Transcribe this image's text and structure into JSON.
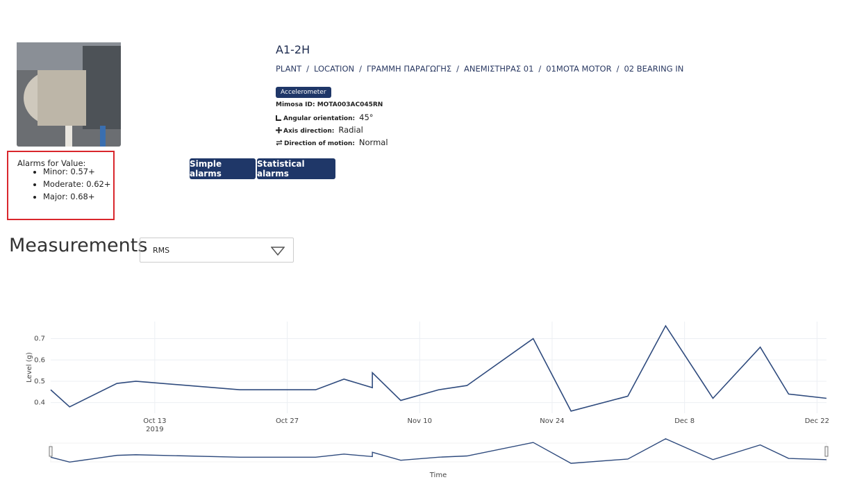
{
  "header": {
    "title": "A1-2H",
    "breadcrumb": [
      "PLANT",
      "LOCATION",
      "ΓΡΑΜΜΗ ΠΑΡΑΓΩΓΗΣ",
      "ΑΝΕΜΙΣΤΗΡΑΣ 01",
      "01MOTA MOTOR",
      "02 BEARING IN"
    ],
    "breadcrumb_separator": "/"
  },
  "sensor": {
    "type": "Accelerometer",
    "mimosa_id": "Mimosa ID: MOTA003AC045RN",
    "angular_orientation": {
      "label": "Angular orientation:",
      "value": "45°"
    },
    "axis_direction": {
      "label": "Axis direction:",
      "value": "Radial"
    },
    "direction_of_motion": {
      "label": "Direction of motion:",
      "value": "Normal"
    }
  },
  "alarms": {
    "heading": "Alarms for Value:",
    "items": [
      "Minor: 0.57+",
      "Moderate: 0.62+",
      "Major: 0.68+"
    ]
  },
  "buttons": [
    "Simple alarms",
    "Statistical alarms"
  ],
  "measurements": {
    "title": "Measurements",
    "selected": "RMS"
  },
  "chart_data": {
    "type": "line",
    "x_label": "Time",
    "y_label": "Level (g)",
    "x": [
      "2019-10-02",
      "2019-10-04",
      "2019-10-09",
      "2019-10-11",
      "2019-10-22",
      "2019-10-30",
      "2019-11-02",
      "2019-11-05",
      "2019-11-05",
      "2019-11-08",
      "2019-11-12",
      "2019-11-15",
      "2019-11-22",
      "2019-11-26",
      "2019-12-02",
      "2019-12-06",
      "2019-12-11",
      "2019-12-16",
      "2019-12-19",
      "2019-12-23"
    ],
    "series": [
      {
        "name": "RMS",
        "color": "#2e4a7d",
        "values": [
          0.46,
          0.38,
          0.49,
          0.5,
          0.46,
          0.46,
          0.51,
          0.47,
          0.54,
          0.41,
          0.46,
          0.48,
          0.7,
          0.36,
          0.43,
          0.76,
          0.42,
          0.66,
          0.44,
          0.42
        ]
      }
    ],
    "xlim": [
      "2019-10-02",
      "2019-12-23"
    ],
    "xticks": [
      {
        "value": "2019-10-13",
        "label": "Oct 13",
        "sublabel": "2019"
      },
      {
        "value": "2019-10-27",
        "label": "Oct 27"
      },
      {
        "value": "2019-11-10",
        "label": "Nov 10"
      },
      {
        "value": "2019-11-24",
        "label": "Nov 24"
      },
      {
        "value": "2019-12-08",
        "label": "Dec 8"
      },
      {
        "value": "2019-12-22",
        "label": "Dec 22"
      }
    ],
    "ylim": [
      0.35,
      0.78
    ],
    "yticks": [
      0.4,
      0.5,
      0.6,
      0.7
    ],
    "grid": true,
    "range_slider": true
  }
}
